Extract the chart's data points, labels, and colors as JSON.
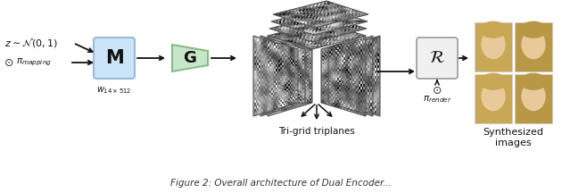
{
  "fig_width": 6.3,
  "fig_height": 2.16,
  "dpi": 100,
  "bg_color": "#ffffff",
  "z_text": "$z \\sim \\mathcal{N}(0,1)$",
  "cam_symbol": "⦿",
  "cam_mapping_text": "$\\pi_{mapping}$",
  "M_box_color": "#cce4f7",
  "M_box_edge": "#99bbdd",
  "M_label": "$\\mathbf{M}$",
  "w_label": "$w_{14\\times512}$",
  "G_box_color": "#c8e6c9",
  "G_box_edge": "#88bb88",
  "G_label": "$\\mathbf{G}$",
  "R_box_color": "#f0f0f0",
  "R_box_edge": "#999999",
  "R_label": "$\\mathcal{R}$",
  "triplane_label": "Tri-grid triplanes",
  "cam_render_text": "$\\pi_{render}$",
  "synth_label": "Synthesized\nimages",
  "arrow_color": "#111111",
  "text_color": "#111111"
}
